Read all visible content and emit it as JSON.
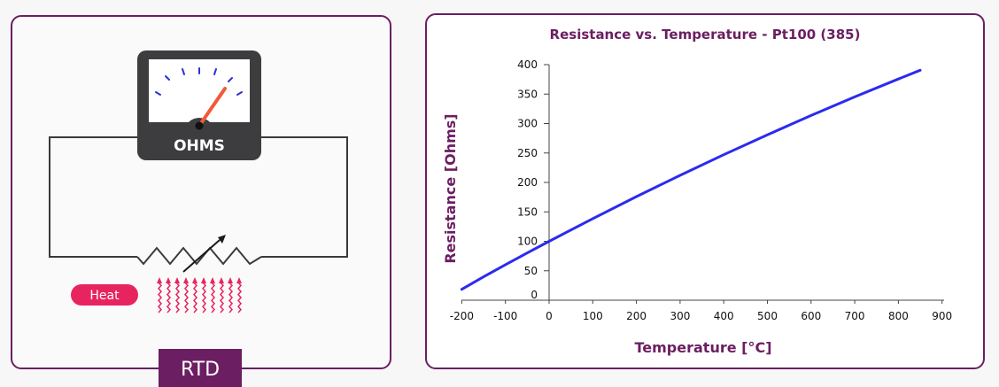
{
  "rtd_diagram": {
    "meter_label": "OHMS",
    "heat_label": "Heat",
    "badge_label": "RTD",
    "colors": {
      "frame": "#6b1e62",
      "heat": "#e8245f",
      "meter_body": "#3d3d3f",
      "needle": "#f05a3a",
      "scale": "#2f2fd6"
    }
  },
  "chart_data": {
    "type": "line",
    "title": "Resistance  vs. Temperature - Pt100 (385)",
    "xlabel": "Temperature [°C]",
    "ylabel": "Resistance [Ohms]",
    "xlim": [
      -200,
      900
    ],
    "ylim": [
      0,
      400
    ],
    "xticks": [
      "-200",
      "-100",
      "0",
      "100",
      "200",
      "300",
      "400",
      "500",
      "600",
      "700",
      "800",
      "900"
    ],
    "yticks": [
      "0",
      "50",
      "100",
      "150",
      "200",
      "250",
      "300",
      "350",
      "400"
    ],
    "series": [
      {
        "color": "#2b2bf0",
        "x": [
          -200,
          -150,
          -100,
          -50,
          0,
          100,
          200,
          300,
          400,
          500,
          600,
          700,
          800,
          850
        ],
        "y": [
          18.5,
          39.7,
          60.3,
          80.3,
          100.0,
          138.5,
          175.9,
          212.1,
          247.1,
          280.9,
          313.7,
          345.3,
          375.7,
          390.5
        ]
      }
    ],
    "grid": false
  }
}
